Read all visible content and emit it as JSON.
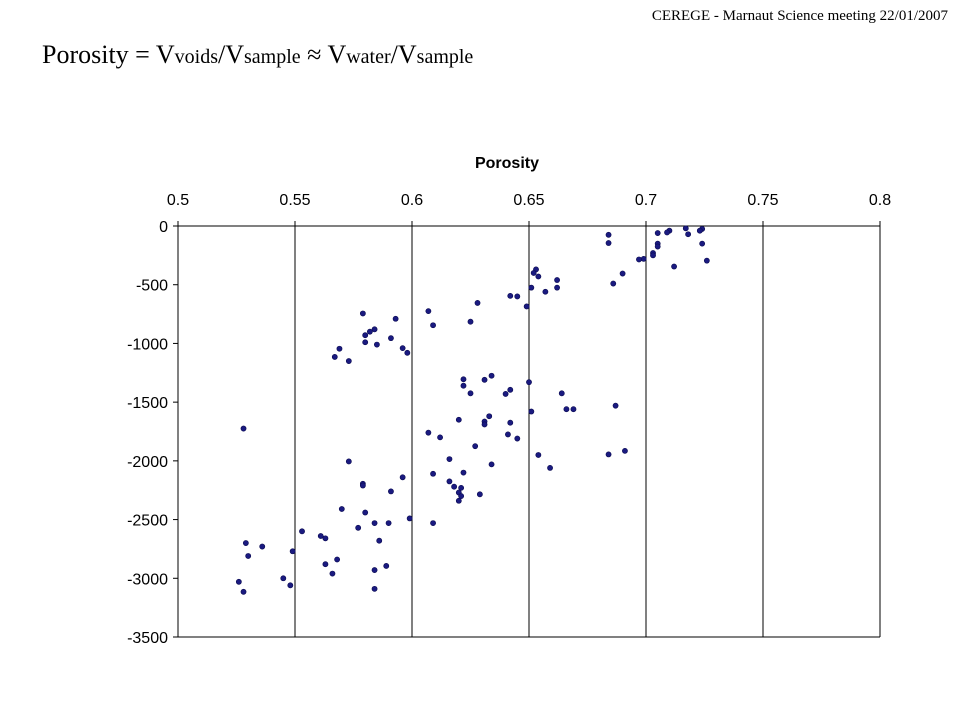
{
  "header": {
    "caption": "CEREGE - Marnaut Science meeting 22/01/2007"
  },
  "formula": {
    "prefix": "Porosity = V",
    "sub1": "voids",
    "part2": "/V",
    "sub2": "sample",
    "part3": " ≈ V",
    "sub3": "water",
    "part4": "/V",
    "sub4": "sample"
  },
  "chart_data": {
    "type": "scatter",
    "title": "Porosity",
    "xlabel": "",
    "ylabel": "",
    "x_axis_position": "top",
    "xlim": [
      0.5,
      0.8
    ],
    "ylim": [
      -3500,
      0
    ],
    "xticks": [
      "0.5",
      "0.55",
      "0.6",
      "0.65",
      "0.7",
      "0.75",
      "0.8"
    ],
    "yticks": [
      "0",
      "-500",
      "-1000",
      "-1500",
      "-2000",
      "-2500",
      "-3000",
      "-3500"
    ],
    "grid": "vertical",
    "legend": "none",
    "marker_color": "#1a1a80",
    "series": [
      {
        "points": [
          [
            0.717,
            -20
          ],
          [
            0.724,
            -25
          ],
          [
            0.723,
            -40
          ],
          [
            0.71,
            -40
          ],
          [
            0.709,
            -55
          ],
          [
            0.705,
            -60
          ],
          [
            0.718,
            -70
          ],
          [
            0.684,
            -75
          ],
          [
            0.705,
            -150
          ],
          [
            0.705,
            -175
          ],
          [
            0.703,
            -230
          ],
          [
            0.703,
            -250
          ],
          [
            0.699,
            -280
          ],
          [
            0.697,
            -285
          ],
          [
            0.724,
            -150
          ],
          [
            0.684,
            -145
          ],
          [
            0.726,
            -295
          ],
          [
            0.712,
            -345
          ],
          [
            0.69,
            -405
          ],
          [
            0.686,
            -490
          ],
          [
            0.653,
            -370
          ],
          [
            0.654,
            -430
          ],
          [
            0.662,
            -460
          ],
          [
            0.652,
            -400
          ],
          [
            0.651,
            -525
          ],
          [
            0.662,
            -525
          ],
          [
            0.657,
            -560
          ],
          [
            0.642,
            -595
          ],
          [
            0.645,
            -600
          ],
          [
            0.649,
            -685
          ],
          [
            0.628,
            -655
          ],
          [
            0.625,
            -815
          ],
          [
            0.607,
            -725
          ],
          [
            0.609,
            -845
          ],
          [
            0.579,
            -745
          ],
          [
            0.593,
            -790
          ],
          [
            0.584,
            -880
          ],
          [
            0.582,
            -900
          ],
          [
            0.58,
            -930
          ],
          [
            0.591,
            -955
          ],
          [
            0.58,
            -990
          ],
          [
            0.585,
            -1010
          ],
          [
            0.596,
            -1040
          ],
          [
            0.569,
            -1045
          ],
          [
            0.598,
            -1080
          ],
          [
            0.567,
            -1115
          ],
          [
            0.573,
            -1150
          ],
          [
            0.634,
            -1275
          ],
          [
            0.631,
            -1310
          ],
          [
            0.622,
            -1305
          ],
          [
            0.622,
            -1360
          ],
          [
            0.65,
            -1330
          ],
          [
            0.664,
            -1425
          ],
          [
            0.642,
            -1395
          ],
          [
            0.64,
            -1430
          ],
          [
            0.625,
            -1425
          ],
          [
            0.651,
            -1580
          ],
          [
            0.666,
            -1560
          ],
          [
            0.669,
            -1560
          ],
          [
            0.687,
            -1530
          ],
          [
            0.633,
            -1620
          ],
          [
            0.631,
            -1665
          ],
          [
            0.642,
            -1675
          ],
          [
            0.631,
            -1690
          ],
          [
            0.62,
            -1650
          ],
          [
            0.607,
            -1760
          ],
          [
            0.641,
            -1775
          ],
          [
            0.645,
            -1810
          ],
          [
            0.612,
            -1800
          ],
          [
            0.627,
            -1875
          ],
          [
            0.654,
            -1950
          ],
          [
            0.691,
            -1915
          ],
          [
            0.684,
            -1945
          ],
          [
            0.616,
            -1985
          ],
          [
            0.634,
            -2030
          ],
          [
            0.659,
            -2060
          ],
          [
            0.609,
            -2110
          ],
          [
            0.622,
            -2100
          ],
          [
            0.616,
            -2175
          ],
          [
            0.618,
            -2220
          ],
          [
            0.621,
            -2230
          ],
          [
            0.62,
            -2270
          ],
          [
            0.621,
            -2300
          ],
          [
            0.629,
            -2285
          ],
          [
            0.62,
            -2340
          ],
          [
            0.609,
            -2530
          ],
          [
            0.528,
            -1725
          ],
          [
            0.573,
            -2005
          ],
          [
            0.596,
            -2140
          ],
          [
            0.579,
            -2195
          ],
          [
            0.579,
            -2210
          ],
          [
            0.591,
            -2260
          ],
          [
            0.57,
            -2410
          ],
          [
            0.58,
            -2440
          ],
          [
            0.599,
            -2490
          ],
          [
            0.584,
            -2530
          ],
          [
            0.59,
            -2530
          ],
          [
            0.577,
            -2570
          ],
          [
            0.553,
            -2600
          ],
          [
            0.561,
            -2640
          ],
          [
            0.563,
            -2660
          ],
          [
            0.586,
            -2680
          ],
          [
            0.529,
            -2700
          ],
          [
            0.536,
            -2730
          ],
          [
            0.549,
            -2770
          ],
          [
            0.53,
            -2810
          ],
          [
            0.568,
            -2840
          ],
          [
            0.563,
            -2880
          ],
          [
            0.589,
            -2895
          ],
          [
            0.584,
            -2930
          ],
          [
            0.566,
            -2960
          ],
          [
            0.545,
            -3000
          ],
          [
            0.526,
            -3030
          ],
          [
            0.548,
            -3060
          ],
          [
            0.584,
            -3090
          ],
          [
            0.528,
            -3115
          ]
        ]
      }
    ]
  }
}
